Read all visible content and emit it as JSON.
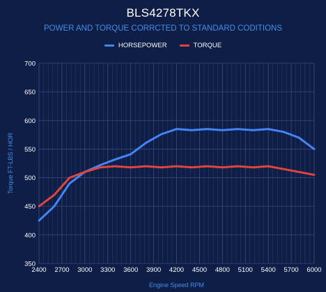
{
  "chart_data": {
    "type": "line",
    "title": "BLS4278TKX",
    "subtitle": "POWER AND TORQUE CORRCTED TO STANDARD CODITIONS",
    "xlabel": "Engine Speed RPM",
    "ylabel": "Torque FT-LBS / HOR",
    "xlim": [
      2400,
      6000
    ],
    "ylim": [
      350,
      700
    ],
    "x_ticks": [
      2400,
      2700,
      3000,
      3300,
      3600,
      3900,
      4200,
      4500,
      4800,
      5100,
      5400,
      5700,
      6000
    ],
    "y_ticks": [
      350,
      400,
      450,
      500,
      550,
      600,
      650,
      700
    ],
    "grid": true,
    "legend_position": "top-center",
    "x": [
      2400,
      2600,
      2800,
      3000,
      3200,
      3400,
      3600,
      3800,
      4000,
      4200,
      4400,
      4600,
      4800,
      5000,
      5200,
      5400,
      5600,
      5800,
      6000
    ],
    "series": [
      {
        "name": "HORSEPOWER",
        "color": "#4285f4",
        "values": [
          425,
          450,
          490,
          510,
          522,
          532,
          541,
          561,
          576,
          585,
          583,
          585,
          583,
          585,
          583,
          585,
          580,
          570,
          550
        ]
      },
      {
        "name": "TORQUE",
        "color": "#e0453c",
        "values": [
          450,
          470,
          500,
          510,
          518,
          520,
          518,
          520,
          518,
          520,
          518,
          520,
          518,
          520,
          518,
          520,
          515,
          510,
          505
        ]
      }
    ]
  }
}
